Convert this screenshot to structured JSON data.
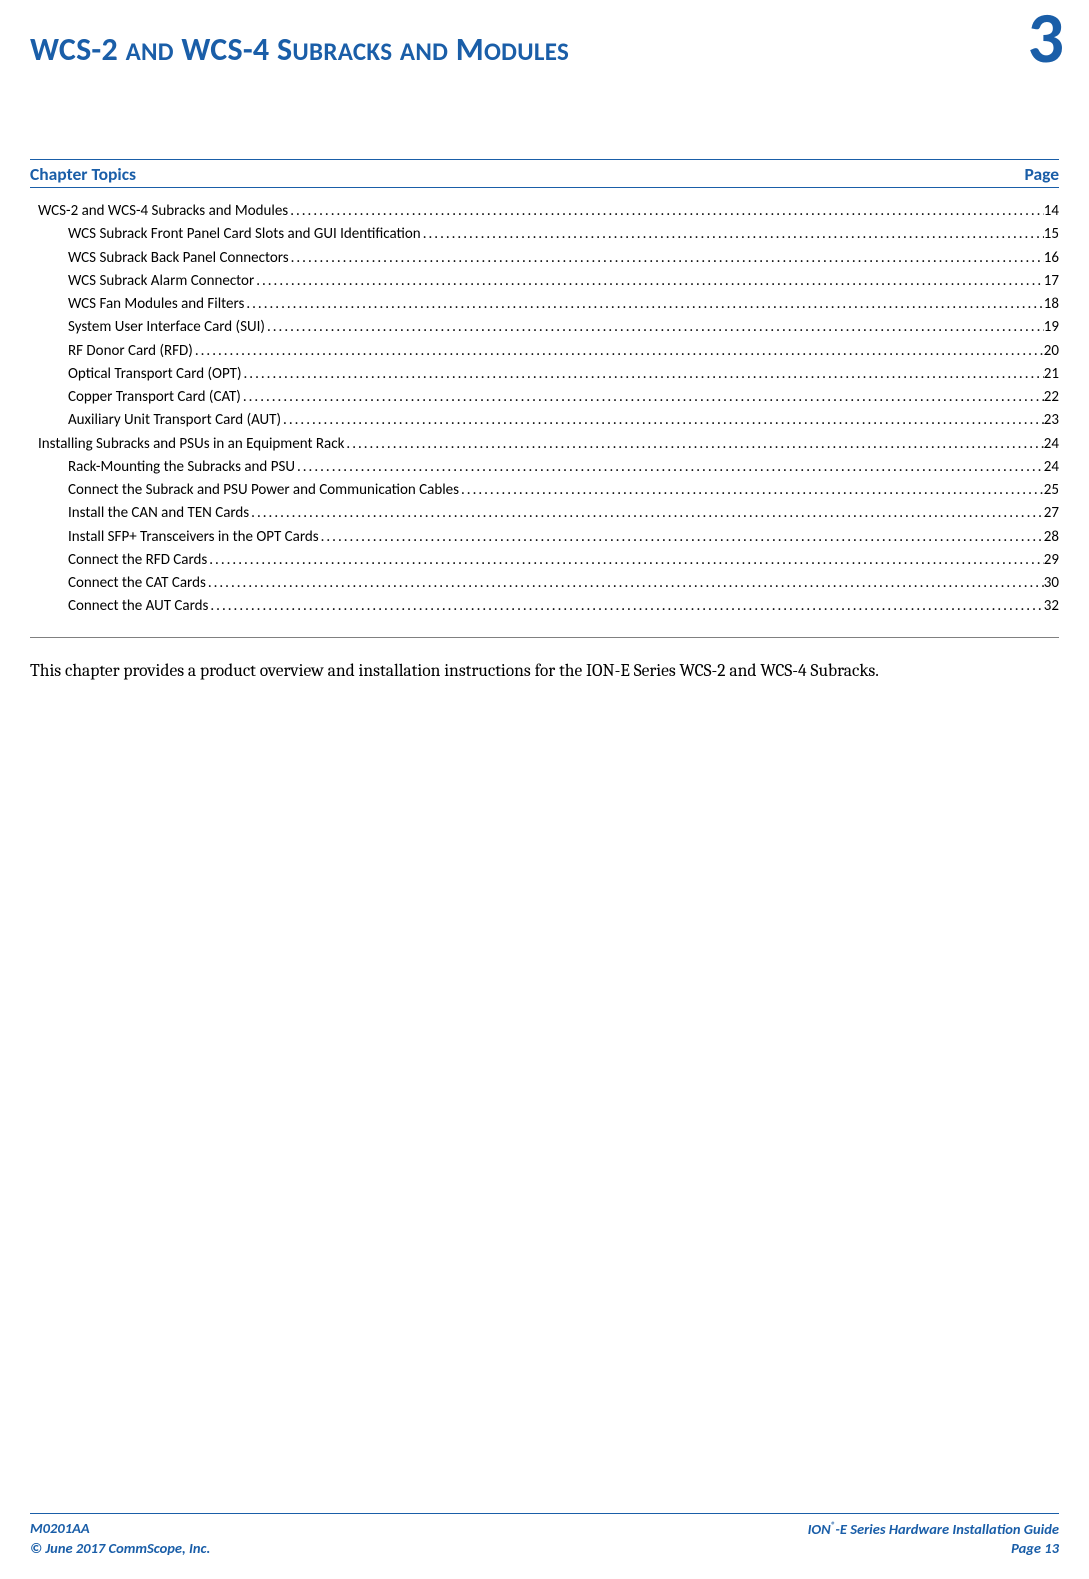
{
  "colors": {
    "accent": "#1a5ea8",
    "text": "#000000",
    "rule_gray": "#808080",
    "rule_accent": "#1a5ea8"
  },
  "chapter": {
    "title_html": "WCS-2 <span style='font-size:25px'>AND</span> WCS-4 S<span style='font-size:25px'>UBRACKS</span> <span style='font-size:25px'>AND</span> M<span style='font-size:25px'>ODULES</span>",
    "number": "3"
  },
  "topics_header": {
    "left": "Chapter Topics",
    "right": "Page"
  },
  "toc": [
    {
      "level": 0,
      "title": "WCS-2 and WCS-4 Subracks and Modules",
      "page": "14"
    },
    {
      "level": 1,
      "title": "WCS Subrack Front Panel Card Slots and GUI Identification",
      "page": "15"
    },
    {
      "level": 1,
      "title": "WCS Subrack Back Panel Connectors",
      "page": "16"
    },
    {
      "level": 1,
      "title": "WCS Subrack Alarm Connector",
      "page": "17"
    },
    {
      "level": 1,
      "title": "WCS Fan Modules and Filters",
      "page": "18"
    },
    {
      "level": 1,
      "title": "System User Interface Card (SUI)",
      "page": "19"
    },
    {
      "level": 1,
      "title": "RF Donor Card (RFD)",
      "page": "20"
    },
    {
      "level": 1,
      "title": "Optical Transport Card (OPT)",
      "page": "21"
    },
    {
      "level": 1,
      "title": "Copper Transport Card (CAT)",
      "page": "22"
    },
    {
      "level": 1,
      "title": "Auxiliary Unit Transport Card (AUT)",
      "page": "23"
    },
    {
      "level": 0,
      "title": "Installing Subracks and PSUs in an Equipment Rack",
      "page": "24"
    },
    {
      "level": 1,
      "title": "Rack-Mounting the Subracks and PSU",
      "page": "24"
    },
    {
      "level": 1,
      "title": "Connect the Subrack and PSU Power and Communication Cables",
      "page": "25"
    },
    {
      "level": 1,
      "title": "Install the CAN and TEN Cards",
      "page": "27"
    },
    {
      "level": 1,
      "title": "Install SFP+ Transceivers in the OPT Cards",
      "page": "28"
    },
    {
      "level": 1,
      "title": "Connect the RFD Cards",
      "page": "29"
    },
    {
      "level": 1,
      "title": "Connect the CAT Cards",
      "page": "30"
    },
    {
      "level": 1,
      "title": "Connect the AUT Cards",
      "page": "32"
    }
  ],
  "intro_paragraph": "This chapter provides a product overview and installation instructions for the ION-E Series WCS-2 and WCS-4 Subracks.",
  "footer": {
    "left_line1": "M0201AA",
    "left_line2": "© June 2017 CommScope, Inc.",
    "right_line1_html": "ION<sup class='reg'>®</sup>-E Series Hardware Installation Guide",
    "right_line2": "Page 13"
  }
}
